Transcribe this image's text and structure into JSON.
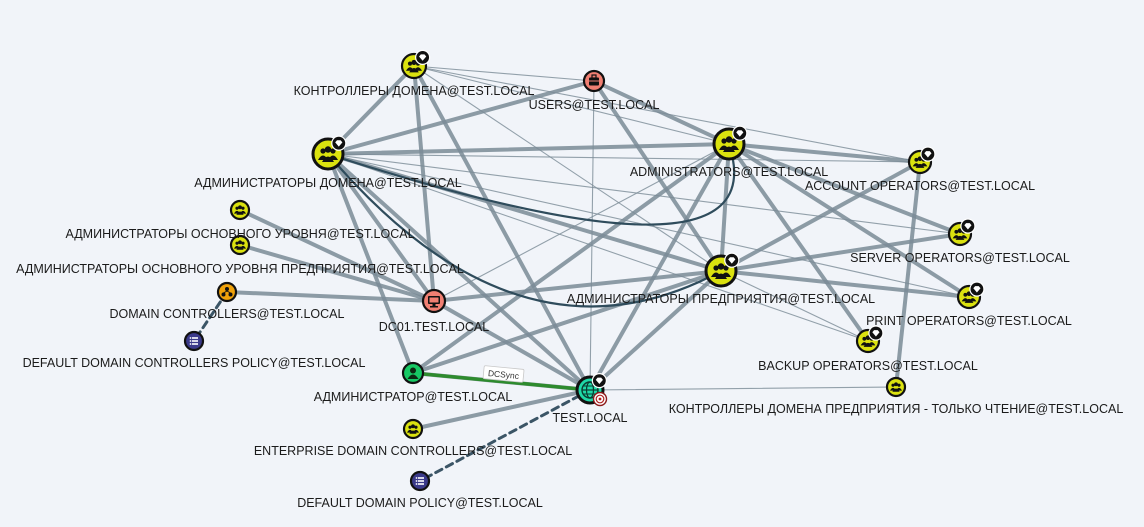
{
  "graph": {
    "nodes": [
      {
        "id": "kd",
        "label": "КОНТРОЛЛЕРЫ ДОМЕНА@TEST.LOCAL",
        "kind": "group",
        "hv": true
      },
      {
        "id": "users",
        "label": "USERS@TEST.LOCAL",
        "kind": "ou",
        "hv": false
      },
      {
        "id": "ad",
        "label": "АДМИНИСТРАТОРЫ ДОМЕНА@TEST.LOCAL",
        "kind": "group",
        "hv": true
      },
      {
        "id": "admins",
        "label": "ADMINISTRATORS@TEST.LOCAL",
        "kind": "group",
        "hv": true
      },
      {
        "id": "acctops",
        "label": "ACCOUNT OPERATORS@TEST.LOCAL",
        "kind": "group",
        "hv": true
      },
      {
        "id": "aou",
        "label": "АДМИНИСТРАТОРЫ ОСНОВНОГО УРОВНЯ@TEST.LOCAL",
        "kind": "group",
        "hv": false
      },
      {
        "id": "aoup",
        "label": "АДМИНИСТРАТОРЫ ОСНОВНОГО УРОВНЯ ПРЕДПРИЯТИЯ@TEST.LOCAL",
        "kind": "group",
        "hv": false
      },
      {
        "id": "srvops",
        "label": "SERVER OPERATORS@TEST.LOCAL",
        "kind": "group",
        "hv": true
      },
      {
        "id": "ap",
        "label": "АДМИНИСТРАТОРЫ ПРЕДПРИЯТИЯ@TEST.LOCAL",
        "kind": "group",
        "hv": true
      },
      {
        "id": "dcou",
        "label": "DOMAIN CONTROLLERS@TEST.LOCAL",
        "kind": "ou-dc",
        "hv": false
      },
      {
        "id": "prnops",
        "label": "PRINT OPERATORS@TEST.LOCAL",
        "kind": "group",
        "hv": true
      },
      {
        "id": "dc01",
        "label": "DC01.TEST.LOCAL",
        "kind": "computer",
        "hv": false
      },
      {
        "id": "ddcp",
        "label": "DEFAULT DOMAIN CONTROLLERS POLICY@TEST.LOCAL",
        "kind": "gpo",
        "hv": false
      },
      {
        "id": "bkops",
        "label": "BACKUP OPERATORS@TEST.LOCAL",
        "kind": "group",
        "hv": true
      },
      {
        "id": "admin",
        "label": "АДМИНИСТРАТОР@TEST.LOCAL",
        "kind": "user",
        "hv": false
      },
      {
        "id": "domain",
        "label": "TEST.LOCAL",
        "kind": "domain",
        "hv": true
      },
      {
        "id": "kdro",
        "label": "КОНТРОЛЛЕРЫ ДОМЕНА ПРЕДПРИЯТИЯ - ТОЛЬКО ЧТЕНИЕ@TEST.LOCAL",
        "kind": "group",
        "hv": false
      },
      {
        "id": "edc",
        "label": "ENTERPRISE DOMAIN CONTROLLERS@TEST.LOCAL",
        "kind": "group",
        "hv": false
      },
      {
        "id": "ddp",
        "label": "DEFAULT DOMAIN POLICY@TEST.LOCAL",
        "kind": "gpo",
        "hv": false
      }
    ],
    "edges": [
      {
        "from": "kd",
        "to": "users",
        "w": "thin"
      },
      {
        "from": "kd",
        "to": "admins",
        "w": "thin"
      },
      {
        "from": "kd",
        "to": "domain",
        "w": "thick"
      },
      {
        "from": "kd",
        "to": "dc01",
        "w": "thick"
      },
      {
        "from": "kd",
        "to": "ap",
        "w": "thin"
      },
      {
        "from": "kd",
        "to": "acctops",
        "w": "thin"
      },
      {
        "from": "users",
        "to": "ad",
        "w": "thick"
      },
      {
        "from": "users",
        "to": "admins",
        "w": "thick"
      },
      {
        "from": "users",
        "to": "domain",
        "w": "thin"
      },
      {
        "from": "users",
        "to": "ap",
        "w": "thick"
      },
      {
        "from": "ad",
        "to": "kd",
        "w": "thick"
      },
      {
        "from": "ad",
        "to": "admins",
        "w": "thick"
      },
      {
        "from": "ad",
        "to": "ap",
        "w": "thick"
      },
      {
        "from": "ad",
        "to": "domain",
        "w": "thick"
      },
      {
        "from": "ad",
        "to": "dc01",
        "w": "thick"
      },
      {
        "from": "ad",
        "to": "admin",
        "w": "thick"
      },
      {
        "from": "ad",
        "to": "acctops",
        "w": "thin"
      },
      {
        "from": "ad",
        "to": "srvops",
        "w": "thin"
      },
      {
        "from": "ad",
        "to": "prnops",
        "w": "thin"
      },
      {
        "from": "ad",
        "to": "bkops",
        "w": "thin"
      },
      {
        "from": "admins",
        "to": "ap",
        "w": "thick"
      },
      {
        "from": "admins",
        "to": "domain",
        "w": "thick"
      },
      {
        "from": "admins",
        "to": "dc01",
        "w": "thin"
      },
      {
        "from": "admins",
        "to": "admin",
        "w": "thick"
      },
      {
        "from": "admins",
        "to": "acctops",
        "w": "thick"
      },
      {
        "from": "admins",
        "to": "srvops",
        "w": "thick"
      },
      {
        "from": "admins",
        "to": "prnops",
        "w": "thick"
      },
      {
        "from": "admins",
        "to": "bkops",
        "w": "thick"
      },
      {
        "from": "ap",
        "to": "domain",
        "w": "thick"
      },
      {
        "from": "ap",
        "to": "dc01",
        "w": "thick"
      },
      {
        "from": "ap",
        "to": "admin",
        "w": "thick"
      },
      {
        "from": "ap",
        "to": "acctops",
        "w": "thick"
      },
      {
        "from": "ap",
        "to": "srvops",
        "w": "thick"
      },
      {
        "from": "ap",
        "to": "prnops",
        "w": "thick"
      },
      {
        "from": "ap",
        "to": "bkops",
        "w": "thin"
      },
      {
        "from": "acctops",
        "to": "kdro",
        "w": "thick"
      },
      {
        "from": "aou",
        "to": "dc01",
        "w": "thick"
      },
      {
        "from": "aoup",
        "to": "dc01",
        "w": "thick"
      },
      {
        "from": "dcou",
        "to": "dc01",
        "w": "thick"
      },
      {
        "from": "dc01",
        "to": "domain",
        "w": "thick"
      },
      {
        "from": "admin",
        "to": "domain",
        "w": "thick"
      },
      {
        "from": "edc",
        "to": "domain",
        "w": "thick"
      },
      {
        "from": "kdro",
        "to": "domain",
        "w": "thin"
      },
      {
        "from": "dcou",
        "to": "ddcp",
        "w": "dashed"
      },
      {
        "from": "domain",
        "to": "ddp",
        "w": "dashed"
      },
      {
        "from": "admin",
        "to": "domain",
        "w": "dcsync"
      }
    ],
    "curves": [
      {
        "from": "ad",
        "to": "ap"
      },
      {
        "from": "ad",
        "to": "admins"
      }
    ],
    "edge_label": "DCSync",
    "colors": {
      "edge": "#7a8b96",
      "curve": "#2f4c5c",
      "dcsync": "#2e8b2e",
      "dashed": "#3b5566",
      "group_fill": "#dbe20f",
      "user_fill": "#17c964",
      "computer_fill": "#f07f72",
      "domain_fill": "#1fd9a7",
      "gpo_fill": "#3b3a8a",
      "ou_dc_fill": "#f0a20a"
    }
  }
}
